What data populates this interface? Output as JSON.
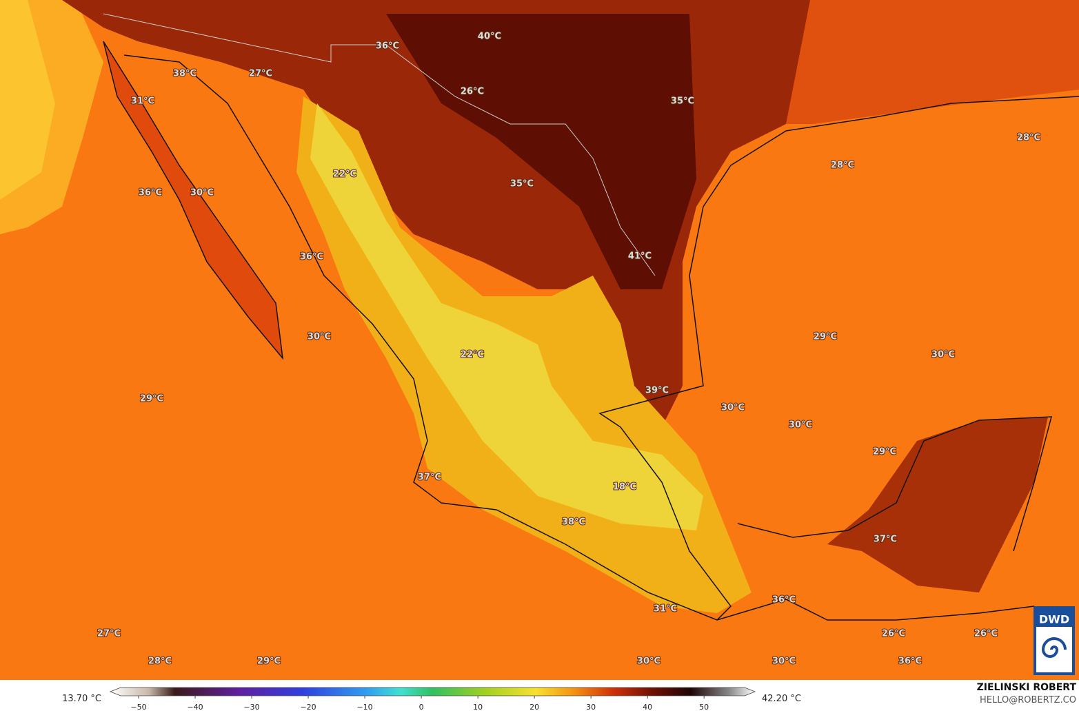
{
  "map": {
    "labels": [
      "40°C",
      "36°C",
      "38°C",
      "27°C",
      "31°C",
      "26°C",
      "35°C",
      "28°C",
      "28°C",
      "22°C",
      "35°C",
      "36°C",
      "30°C",
      "36°C",
      "41°C",
      "30°C",
      "29°C",
      "30°C",
      "22°C",
      "29°C",
      "39°C",
      "30°C",
      "30°C",
      "29°C",
      "37°C",
      "18°C",
      "38°C",
      "37°C",
      "36°C",
      "31°C",
      "27°C",
      "26°C",
      "26°C",
      "28°C",
      "29°C",
      "30°C",
      "30°C",
      "36°C"
    ],
    "logo": "DWD"
  },
  "colorbar": {
    "min_label": "13.70 °C",
    "max_label": "42.20 °C",
    "range": [
      -55,
      59
    ],
    "ticks": [
      {
        "value": -50,
        "label": "−50"
      },
      {
        "value": -40,
        "label": "−40"
      },
      {
        "value": -30,
        "label": "−30"
      },
      {
        "value": -20,
        "label": "−20"
      },
      {
        "value": -10,
        "label": "−10"
      },
      0,
      10,
      20,
      30,
      40,
      50
    ]
  },
  "credits": {
    "author": "ZIELINSKI ROBERT",
    "contact": "HELLO@ROBERTZ.CO"
  }
}
